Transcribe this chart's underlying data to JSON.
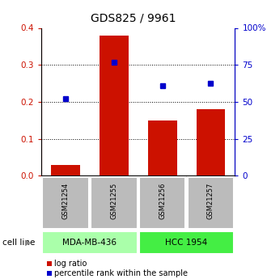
{
  "title": "GDS825 / 9961",
  "samples": [
    "GSM21254",
    "GSM21255",
    "GSM21256",
    "GSM21257"
  ],
  "log_ratios": [
    0.03,
    0.38,
    0.15,
    0.18
  ],
  "percentile_ranks": [
    52,
    77,
    61,
    62.5
  ],
  "cell_lines": [
    {
      "label": "MDA-MB-436",
      "samples": [
        0,
        1
      ],
      "color": "#aaffaa"
    },
    {
      "label": "HCC 1954",
      "samples": [
        2,
        3
      ],
      "color": "#44ee44"
    }
  ],
  "left_ylim": [
    0,
    0.4
  ],
  "left_yticks": [
    0,
    0.1,
    0.2,
    0.3,
    0.4
  ],
  "right_ylim": [
    0,
    100
  ],
  "right_yticks": [
    0,
    25,
    50,
    75,
    100
  ],
  "right_yticklabels": [
    "0",
    "25",
    "50",
    "75",
    "100%"
  ],
  "bar_color": "#cc1100",
  "dot_color": "#0000cc",
  "left_tick_color": "#cc1100",
  "right_tick_color": "#0000cc",
  "grid_yticks": [
    0.1,
    0.2,
    0.3
  ],
  "bar_width": 0.6,
  "sample_label_color": "#bbbbbb",
  "legend_red_label": "log ratio",
  "legend_blue_label": "percentile rank within the sample"
}
